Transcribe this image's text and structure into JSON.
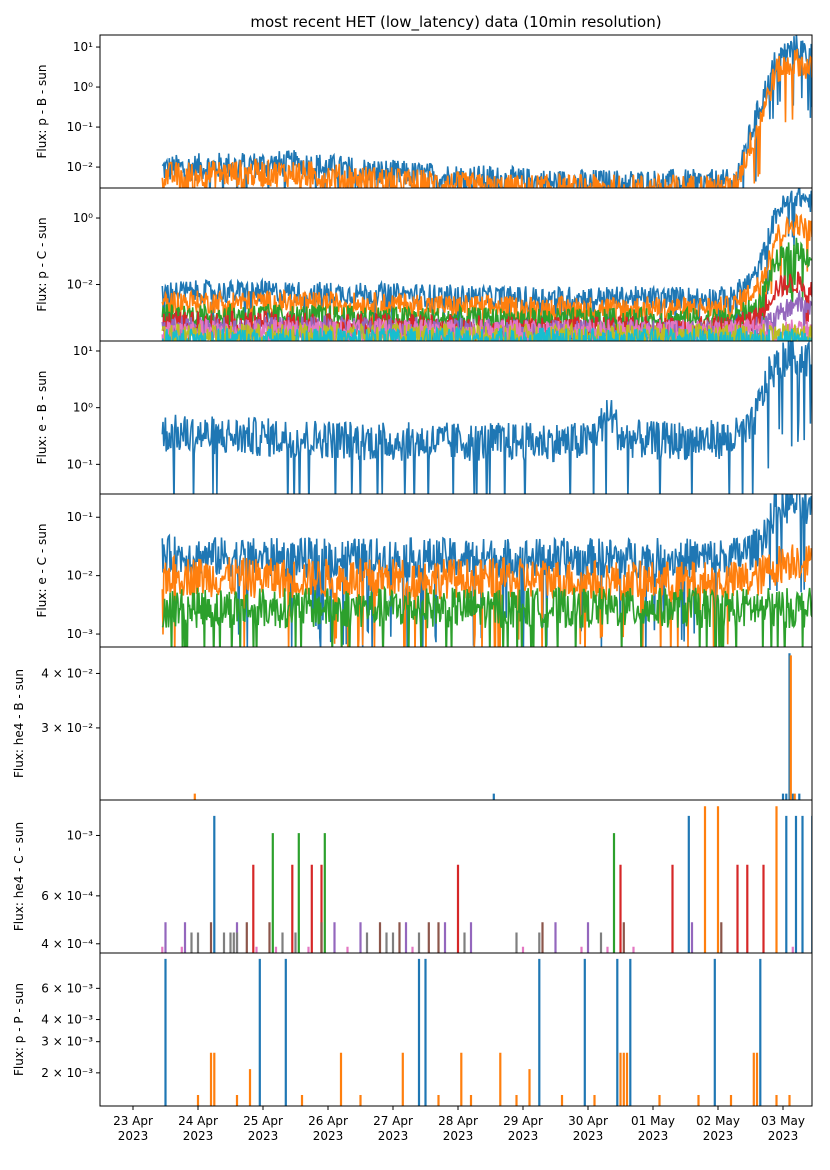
{
  "figure": {
    "title": "most recent HET (low_latency) data (10min resolution)",
    "x_tick_labels": [
      [
        "23 Apr",
        "2023"
      ],
      [
        "24 Apr",
        "2023"
      ],
      [
        "25 Apr",
        "2023"
      ],
      [
        "26 Apr",
        "2023"
      ],
      [
        "27 Apr",
        "2023"
      ],
      [
        "28 Apr",
        "2023"
      ],
      [
        "29 Apr",
        "2023"
      ],
      [
        "30 Apr",
        "2023"
      ],
      [
        "01 May",
        "2023"
      ],
      [
        "02 May",
        "2023"
      ],
      [
        "03 May",
        "2023"
      ]
    ]
  },
  "chart_data": [
    {
      "type": "line",
      "ylabel": "Flux: p - B - sun",
      "yscale": "log",
      "ylim": [
        0.003,
        20
      ],
      "y_ticks": [
        {
          "value": 0.01,
          "label": "10⁻²"
        },
        {
          "value": 0.1,
          "label": "10⁻¹"
        },
        {
          "value": 1,
          "label": "10⁰"
        },
        {
          "value": 10,
          "label": "10¹"
        }
      ],
      "x_range_days": [
        0,
        10.5
      ],
      "series": [
        {
          "color": "#1f77b4",
          "kind": "noisy",
          "x": [
            0.45,
            1.5,
            2.5,
            3.5,
            4.5,
            5.5,
            6.5,
            7.5,
            8.5,
            9.25,
            9.6,
            9.9,
            10.2,
            10.45
          ],
          "y": [
            0.009,
            0.011,
            0.012,
            0.008,
            0.006,
            0.005,
            0.004,
            0.004,
            0.004,
            0.004,
            0.2,
            5,
            10,
            6
          ]
        },
        {
          "color": "#ff7f0e",
          "kind": "noisy",
          "x": [
            0.45,
            1.5,
            2.5,
            3.5,
            4.5,
            5.5,
            6.5,
            7.5,
            8.5,
            9.25,
            9.6,
            9.9,
            10.2,
            10.45
          ],
          "y": [
            0.006,
            0.007,
            0.007,
            0.005,
            0.004,
            0.003,
            0.003,
            0.003,
            0.003,
            0.003,
            0.1,
            2.5,
            4.5,
            2.5
          ]
        }
      ]
    },
    {
      "type": "line",
      "ylabel": "Flux: p - C - sun",
      "yscale": "log",
      "ylim": [
        0.0002,
        8
      ],
      "y_ticks": [
        {
          "value": 0.01,
          "label": "10⁻²"
        },
        {
          "value": 1,
          "label": "10⁰"
        }
      ],
      "x_range_days": [
        0,
        10.5
      ],
      "series": [
        {
          "color": "#1f77b4",
          "kind": "noisy",
          "x": [
            0.45,
            2,
            4,
            6,
            8,
            9.2,
            9.6,
            9.9,
            10.2,
            10.45
          ],
          "y": [
            0.006,
            0.006,
            0.005,
            0.004,
            0.004,
            0.004,
            0.02,
            1.5,
            5,
            3
          ]
        },
        {
          "color": "#ff7f0e",
          "kind": "noisy",
          "x": [
            0.45,
            2,
            4,
            6,
            8,
            9.2,
            9.6,
            9.9,
            10.2,
            10.45
          ],
          "y": [
            0.003,
            0.003,
            0.0025,
            0.002,
            0.002,
            0.002,
            0.008,
            0.3,
            0.7,
            0.4
          ]
        },
        {
          "color": "#2ca02c",
          "kind": "noisy",
          "x": [
            0.45,
            2,
            4,
            6,
            8,
            9.2,
            9.6,
            9.9,
            10.2,
            10.45
          ],
          "y": [
            0.0012,
            0.0012,
            0.001,
            0.0009,
            0.0009,
            0.0009,
            0.002,
            0.05,
            0.12,
            0.06
          ]
        },
        {
          "color": "#d62728",
          "kind": "noisy",
          "x": [
            0.45,
            2,
            4,
            6,
            8,
            9.2,
            9.6,
            9.9,
            10.2,
            10.45
          ],
          "y": [
            0.0007,
            0.0007,
            0.0006,
            0.0005,
            0.0005,
            0.0005,
            0.001,
            0.008,
            0.012,
            0.007
          ]
        },
        {
          "color": "#9467bd",
          "kind": "noisy",
          "x": [
            0.45,
            2,
            4,
            6,
            8,
            9.2,
            9.6,
            9.9,
            10.2,
            10.45
          ],
          "y": [
            0.0005,
            0.0005,
            0.0005,
            0.0004,
            0.0004,
            0.0004,
            0.0005,
            0.001,
            0.003,
            0.002
          ]
        },
        {
          "color": "#e377c2",
          "kind": "noisy",
          "x": [
            0.45,
            10.45
          ],
          "y": [
            0.0004,
            0.0004
          ]
        },
        {
          "color": "#bcbd22",
          "kind": "noisy",
          "x": [
            0.45,
            10.45
          ],
          "y": [
            0.0003,
            0.0003
          ]
        },
        {
          "color": "#17becf",
          "kind": "noisy",
          "x": [
            0.45,
            10.45
          ],
          "y": [
            0.00022,
            0.00022
          ]
        }
      ]
    },
    {
      "type": "line",
      "ylabel": "Flux: e - B - sun",
      "yscale": "log",
      "ylim": [
        0.03,
        15
      ],
      "y_ticks": [
        {
          "value": 0.1,
          "label": "10⁻¹"
        },
        {
          "value": 1,
          "label": "10⁰"
        },
        {
          "value": 10,
          "label": "10¹"
        }
      ],
      "x_range_days": [
        0,
        10.5
      ],
      "series": [
        {
          "color": "#1f77b4",
          "kind": "noisy",
          "x": [
            0.45,
            2,
            3,
            4,
            5,
            6,
            7,
            7.35,
            7.5,
            8,
            9.2,
            9.5,
            9.8,
            10.1,
            10.45
          ],
          "y": [
            0.35,
            0.3,
            0.28,
            0.25,
            0.25,
            0.25,
            0.25,
            0.8,
            0.3,
            0.26,
            0.28,
            0.4,
            4,
            9,
            7
          ]
        }
      ]
    },
    {
      "type": "line",
      "ylabel": "Flux: e - C - sun",
      "yscale": "log",
      "ylim": [
        0.0006,
        0.25
      ],
      "y_ticks": [
        {
          "value": 0.001,
          "label": "10⁻³"
        },
        {
          "value": 0.01,
          "label": "10⁻²"
        },
        {
          "value": 0.1,
          "label": "10⁻¹"
        }
      ],
      "x_range_days": [
        0,
        10.5
      ],
      "series": [
        {
          "color": "#1f77b4",
          "kind": "noisy",
          "x": [
            0.45,
            2,
            4,
            6,
            8,
            9.2,
            9.6,
            9.9,
            10.2,
            10.45
          ],
          "y": [
            0.022,
            0.02,
            0.02,
            0.02,
            0.02,
            0.02,
            0.03,
            0.15,
            0.18,
            0.1
          ]
        },
        {
          "color": "#ff7f0e",
          "kind": "noisy",
          "x": [
            0.45,
            2,
            4,
            6,
            8,
            9.2,
            9.6,
            9.9,
            10.2,
            10.45
          ],
          "y": [
            0.01,
            0.009,
            0.009,
            0.009,
            0.008,
            0.008,
            0.009,
            0.015,
            0.02,
            0.015
          ]
        },
        {
          "color": "#2ca02c",
          "kind": "noisy",
          "x": [
            0.45,
            10.45
          ],
          "y": [
            0.0028,
            0.0028
          ]
        }
      ]
    },
    {
      "type": "line",
      "ylabel": "Flux: he4 - B - sun",
      "yscale": "log",
      "ylim": [
        0.0205,
        0.046
      ],
      "y_ticks": [
        {
          "value": 0.03,
          "label": "3 × 10⁻²"
        },
        {
          "value": 0.04,
          "label": "4 × 10⁻²"
        }
      ],
      "x_range_days": [
        0,
        10.5
      ],
      "series": [
        {
          "color": "#1f77b4",
          "kind": "spikes",
          "x": [
            5.55,
            10.0,
            10.05,
            10.1,
            10.15,
            10.25
          ],
          "y": [
            0.0212,
            0.0212,
            0.0212,
            0.0445,
            0.0212,
            0.0212
          ]
        },
        {
          "color": "#ff7f0e",
          "kind": "spikes",
          "x": [
            0.95,
            10.12,
            10.18
          ],
          "y": [
            0.0212,
            0.044,
            0.0212
          ]
        }
      ]
    },
    {
      "type": "line",
      "ylabel": "Flux: he4 - C - sun",
      "yscale": "log",
      "ylim": [
        0.00037,
        0.00135
      ],
      "y_ticks": [
        {
          "value": 0.0004,
          "label": "4 × 10⁻⁴"
        },
        {
          "value": 0.0006,
          "label": "6 × 10⁻⁴"
        },
        {
          "value": 0.001,
          "label": "10⁻³"
        }
      ],
      "x_range_days": [
        0,
        10.5
      ],
      "series": [
        {
          "color": "#1f77b4",
          "kind": "spikes",
          "x": [
            1.25,
            8.55,
            10.05,
            10.2,
            10.3,
            10.45
          ],
          "y": [
            0.00118,
            0.00118,
            0.00118,
            0.00118,
            0.00118,
            0.00118
          ]
        },
        {
          "color": "#ff7f0e",
          "kind": "spikes",
          "x": [
            8.8,
            9.0,
            9.9
          ],
          "y": [
            0.00128,
            0.00128,
            0.00128
          ]
        },
        {
          "color": "#2ca02c",
          "kind": "spikes",
          "x": [
            2.15,
            2.55,
            2.95,
            7.4
          ],
          "y": [
            0.00102,
            0.00102,
            0.00102,
            0.00102
          ]
        },
        {
          "color": "#d62728",
          "kind": "spikes",
          "x": [
            1.85,
            2.45,
            2.75,
            2.9,
            5.0,
            7.5,
            8.3,
            9.3,
            9.45,
            9.7
          ],
          "y": [
            0.00078,
            0.00078,
            0.00078,
            0.00078,
            0.00078,
            0.00078,
            0.00078,
            0.00078,
            0.00078,
            0.00078
          ]
        },
        {
          "color": "#9467bd",
          "kind": "spikes",
          "x": [
            0.5,
            0.8,
            1.6,
            3.1,
            3.5,
            4.2,
            4.8,
            5.2,
            6.5,
            7.0,
            8.6
          ],
          "y": [
            0.00048,
            0.00048,
            0.00048,
            0.00048,
            0.00048,
            0.00048,
            0.00048,
            0.00048,
            0.00048,
            0.00048,
            0.00048
          ]
        },
        {
          "color": "#8c564b",
          "kind": "spikes",
          "x": [
            1.2,
            1.75,
            2.1,
            2.9,
            3.8,
            4.1,
            4.55,
            4.7,
            6.3,
            7.55,
            9.05
          ],
          "y": [
            0.00048,
            0.00048,
            0.00048,
            0.00048,
            0.00048,
            0.00048,
            0.00048,
            0.00048,
            0.00048,
            0.00048,
            0.00048
          ]
        },
        {
          "color": "#e377c2",
          "kind": "spikes",
          "x": [
            0.45,
            0.75,
            1.9,
            2.2,
            2.7,
            3.3,
            4.3,
            6.0,
            6.9,
            7.3,
            7.7,
            10.15
          ],
          "y": [
            0.00039,
            0.00039,
            0.00039,
            0.00039,
            0.00039,
            0.00039,
            0.00039,
            0.00039,
            0.00039,
            0.00039,
            0.00039,
            0.00039
          ]
        },
        {
          "color": "#7f7f7f",
          "kind": "spikes",
          "x": [
            0.9,
            1.0,
            1.4,
            1.5,
            1.55,
            1.6,
            2.3,
            2.5,
            3.6,
            3.9,
            4.0,
            4.4,
            5.1,
            5.9,
            6.25,
            7.2
          ],
          "y": [
            0.00044,
            0.00044,
            0.00044,
            0.00044,
            0.00044,
            0.00044,
            0.00044,
            0.00044,
            0.00044,
            0.00044,
            0.00044,
            0.00044,
            0.00044,
            0.00044,
            0.00044,
            0.00044
          ]
        }
      ]
    },
    {
      "type": "line",
      "ylabel": "Flux: p - P - sun",
      "yscale": "log",
      "ylim": [
        0.0013,
        0.0095
      ],
      "y_ticks": [
        {
          "value": 0.002,
          "label": "2 × 10⁻³"
        },
        {
          "value": 0.003,
          "label": "3 × 10⁻³"
        },
        {
          "value": 0.004,
          "label": "4 × 10⁻³"
        },
        {
          "value": 0.006,
          "label": "6 × 10⁻³"
        }
      ],
      "x_range_days": [
        0,
        10.5
      ],
      "series": [
        {
          "color": "#1f77b4",
          "kind": "spikes",
          "x": [
            0.5,
            1.95,
            2.35,
            4.4,
            4.5,
            6.25,
            6.95,
            7.45,
            7.65,
            8.95,
            9.65
          ],
          "y": [
            0.0088,
            0.0088,
            0.0088,
            0.0088,
            0.0088,
            0.0088,
            0.0088,
            0.0088,
            0.0088,
            0.0088,
            0.0088
          ]
        },
        {
          "color": "#ff7f0e",
          "kind": "spikes",
          "x": [
            1.2,
            1.25,
            1.8,
            3.2,
            4.15,
            5.05,
            5.65,
            6.1,
            7.5,
            7.55,
            7.6,
            9.55,
            9.6,
            1.0,
            1.6,
            2.6,
            3.5,
            4.7,
            5.2,
            5.9,
            6.6,
            7.1,
            8.1,
            8.7,
            9.2,
            9.9,
            10.1
          ],
          "y": [
            0.0026,
            0.0026,
            0.0021,
            0.0026,
            0.0026,
            0.0026,
            0.0026,
            0.0021,
            0.0026,
            0.0026,
            0.0026,
            0.0026,
            0.0026,
            0.0015,
            0.0015,
            0.0015,
            0.0015,
            0.0015,
            0.0015,
            0.0015,
            0.0015,
            0.0015,
            0.0015,
            0.0015,
            0.0015,
            0.0015,
            0.0015
          ]
        }
      ]
    }
  ]
}
